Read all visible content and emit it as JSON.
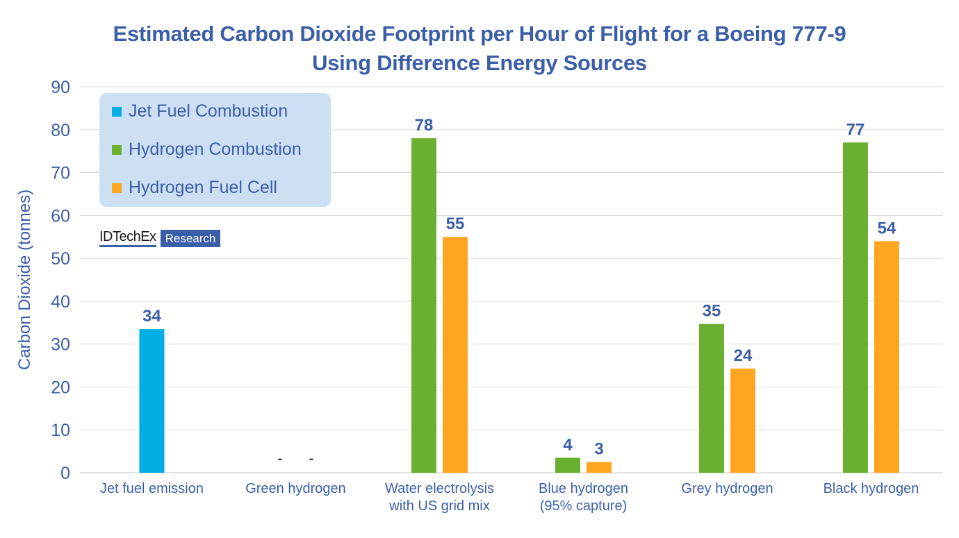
{
  "chart_data": {
    "type": "bar",
    "title": "Estimated Carbon Dioxide Footprint per Hour of Flight for a Boeing 777-9 Using Difference Energy Sources",
    "title_lines": [
      "Estimated Carbon Dioxide Footprint per Hour of Flight for a Boeing 777-9",
      "Using Difference Energy Sources"
    ],
    "xlabel": "",
    "ylabel": "Carbon Dioxide (tonnes)",
    "ylim": [
      0,
      90
    ],
    "yticks": [
      0,
      10,
      20,
      30,
      40,
      50,
      60,
      70,
      80,
      90
    ],
    "grid": true,
    "legend_position": "top-left",
    "categories": [
      [
        "Jet fuel emission"
      ],
      [
        "Green hydrogen"
      ],
      [
        "Water electrolysis",
        "with US grid mix"
      ],
      [
        "Blue hydrogen",
        "(95% capture)"
      ],
      [
        "Grey hydrogen"
      ],
      [
        "Black hydrogen"
      ]
    ],
    "series": [
      {
        "name": "Jet Fuel Combustion",
        "color": "#00aee6",
        "values": [
          33.5,
          null,
          null,
          null,
          null,
          null
        ],
        "labels": [
          "34",
          "",
          "",
          "",
          "",
          ""
        ]
      },
      {
        "name": "Hydrogen Combustion",
        "color": "#6ab030",
        "values": [
          null,
          0,
          78,
          3.5,
          34.7,
          77
        ],
        "labels": [
          "",
          "-",
          "78",
          "4",
          "35",
          "77"
        ]
      },
      {
        "name": "Hydrogen Fuel Cell",
        "color": "#ffa520",
        "values": [
          null,
          0,
          55,
          2.5,
          24.3,
          54
        ],
        "labels": [
          "",
          "-",
          "55",
          "3",
          "24",
          "54"
        ]
      }
    ]
  },
  "branding": {
    "name": "IDTechEx",
    "tag": "Research"
  },
  "colors": {
    "text": "#3a5ea8",
    "grid": "#d9d9d9",
    "legend_bg": "#cde0f3"
  }
}
